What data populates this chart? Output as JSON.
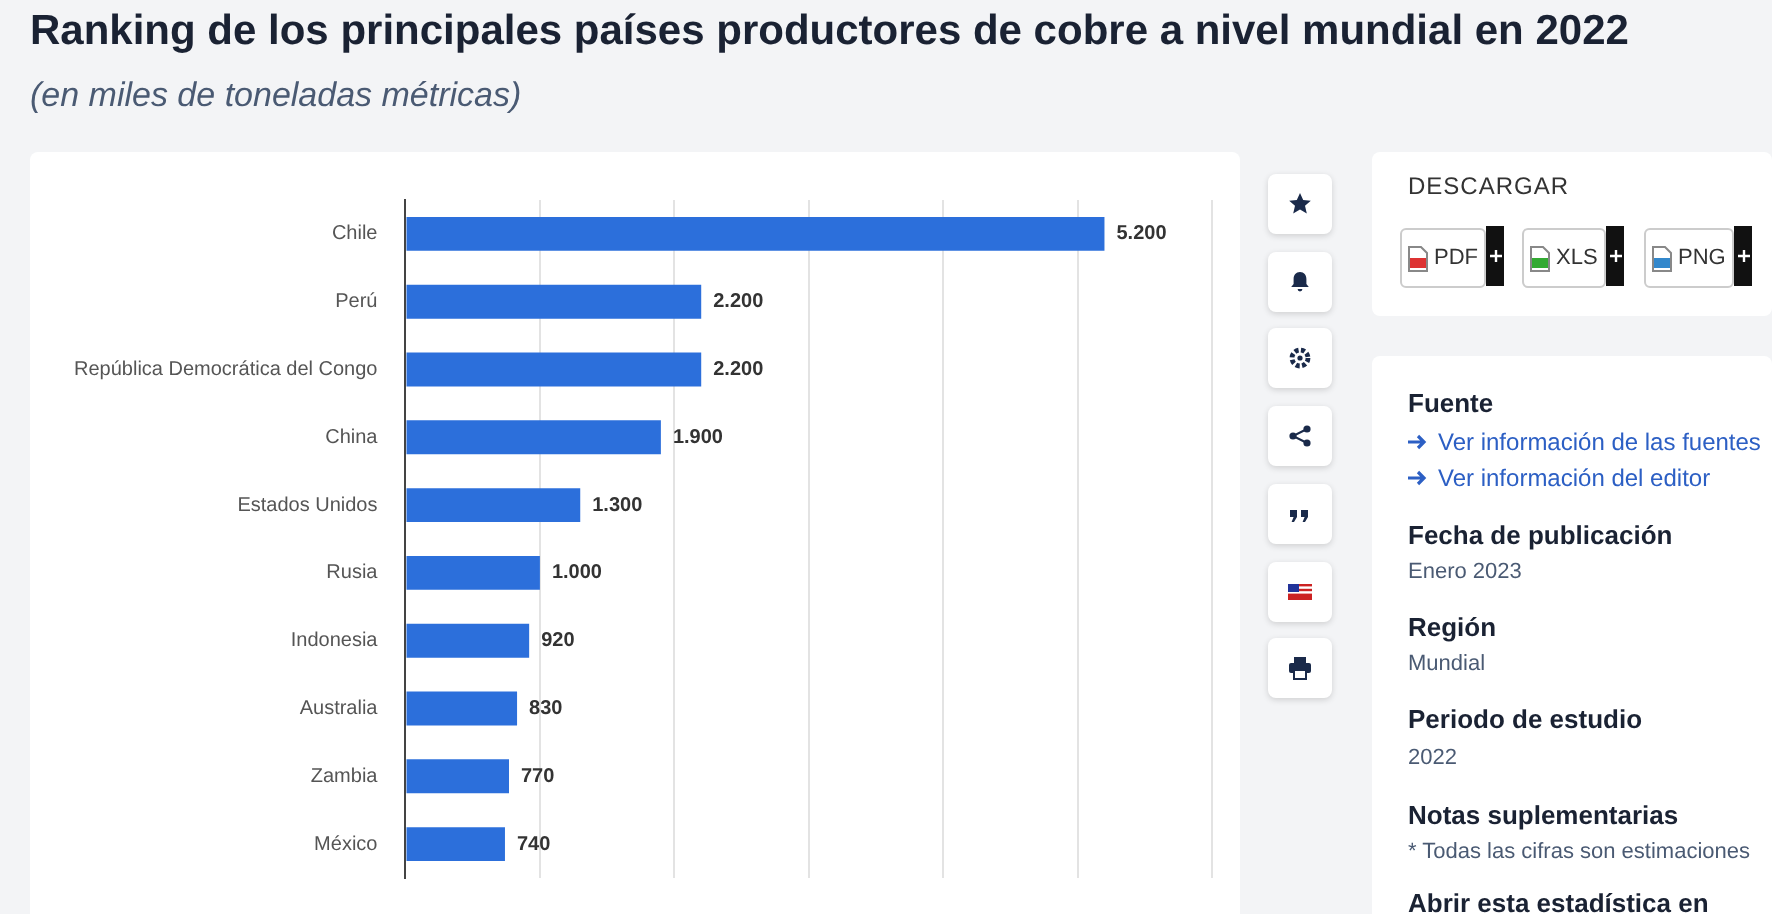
{
  "chart_data": {
    "type": "bar",
    "orientation": "horizontal",
    "title": "Ranking de los principales países productores de cobre a nivel mundial en 2022",
    "subtitle": "(en miles de toneladas métricas)",
    "categories": [
      "Chile",
      "Perú",
      "República Democrática del Congo",
      "China",
      "Estados Unidos",
      "Rusia",
      "Indonesia",
      "Australia",
      "Zambia",
      "México"
    ],
    "values": [
      5200,
      2200,
      2200,
      1900,
      1300,
      1000,
      920,
      830,
      770,
      740
    ],
    "value_labels": [
      "5.200",
      "2.200",
      "2.200",
      "1.900",
      "1.300",
      "1.000",
      "920",
      "830",
      "770",
      "740"
    ],
    "color": "#2c6fdb",
    "xlim": [
      0,
      6000
    ],
    "xticks": [
      {
        "value": 0,
        "label": null
      },
      {
        "value": 1000,
        "label": null
      },
      {
        "value": 2000,
        "label": null
      },
      {
        "value": 3000,
        "label": null
      },
      {
        "value": 4000,
        "label": null
      },
      {
        "value": 5000,
        "label": null
      },
      {
        "value": 6000,
        "label": null
      }
    ],
    "grid": "x",
    "tick_labels": "y",
    "legend": false,
    "annotations": [
      "DESCARGAR",
      "PDF",
      "XLS",
      "PNG",
      "Fuente",
      "Ver información de las fuentes",
      "Ver información del editor",
      "Fecha de publicación",
      "Enero 2023",
      "Región",
      "Mundial",
      "Periodo de estudio",
      "2022",
      "Notas suplementarias",
      "* Todas las cifras son estimaciones",
      "Abrir esta estadística en"
    ]
  }
}
